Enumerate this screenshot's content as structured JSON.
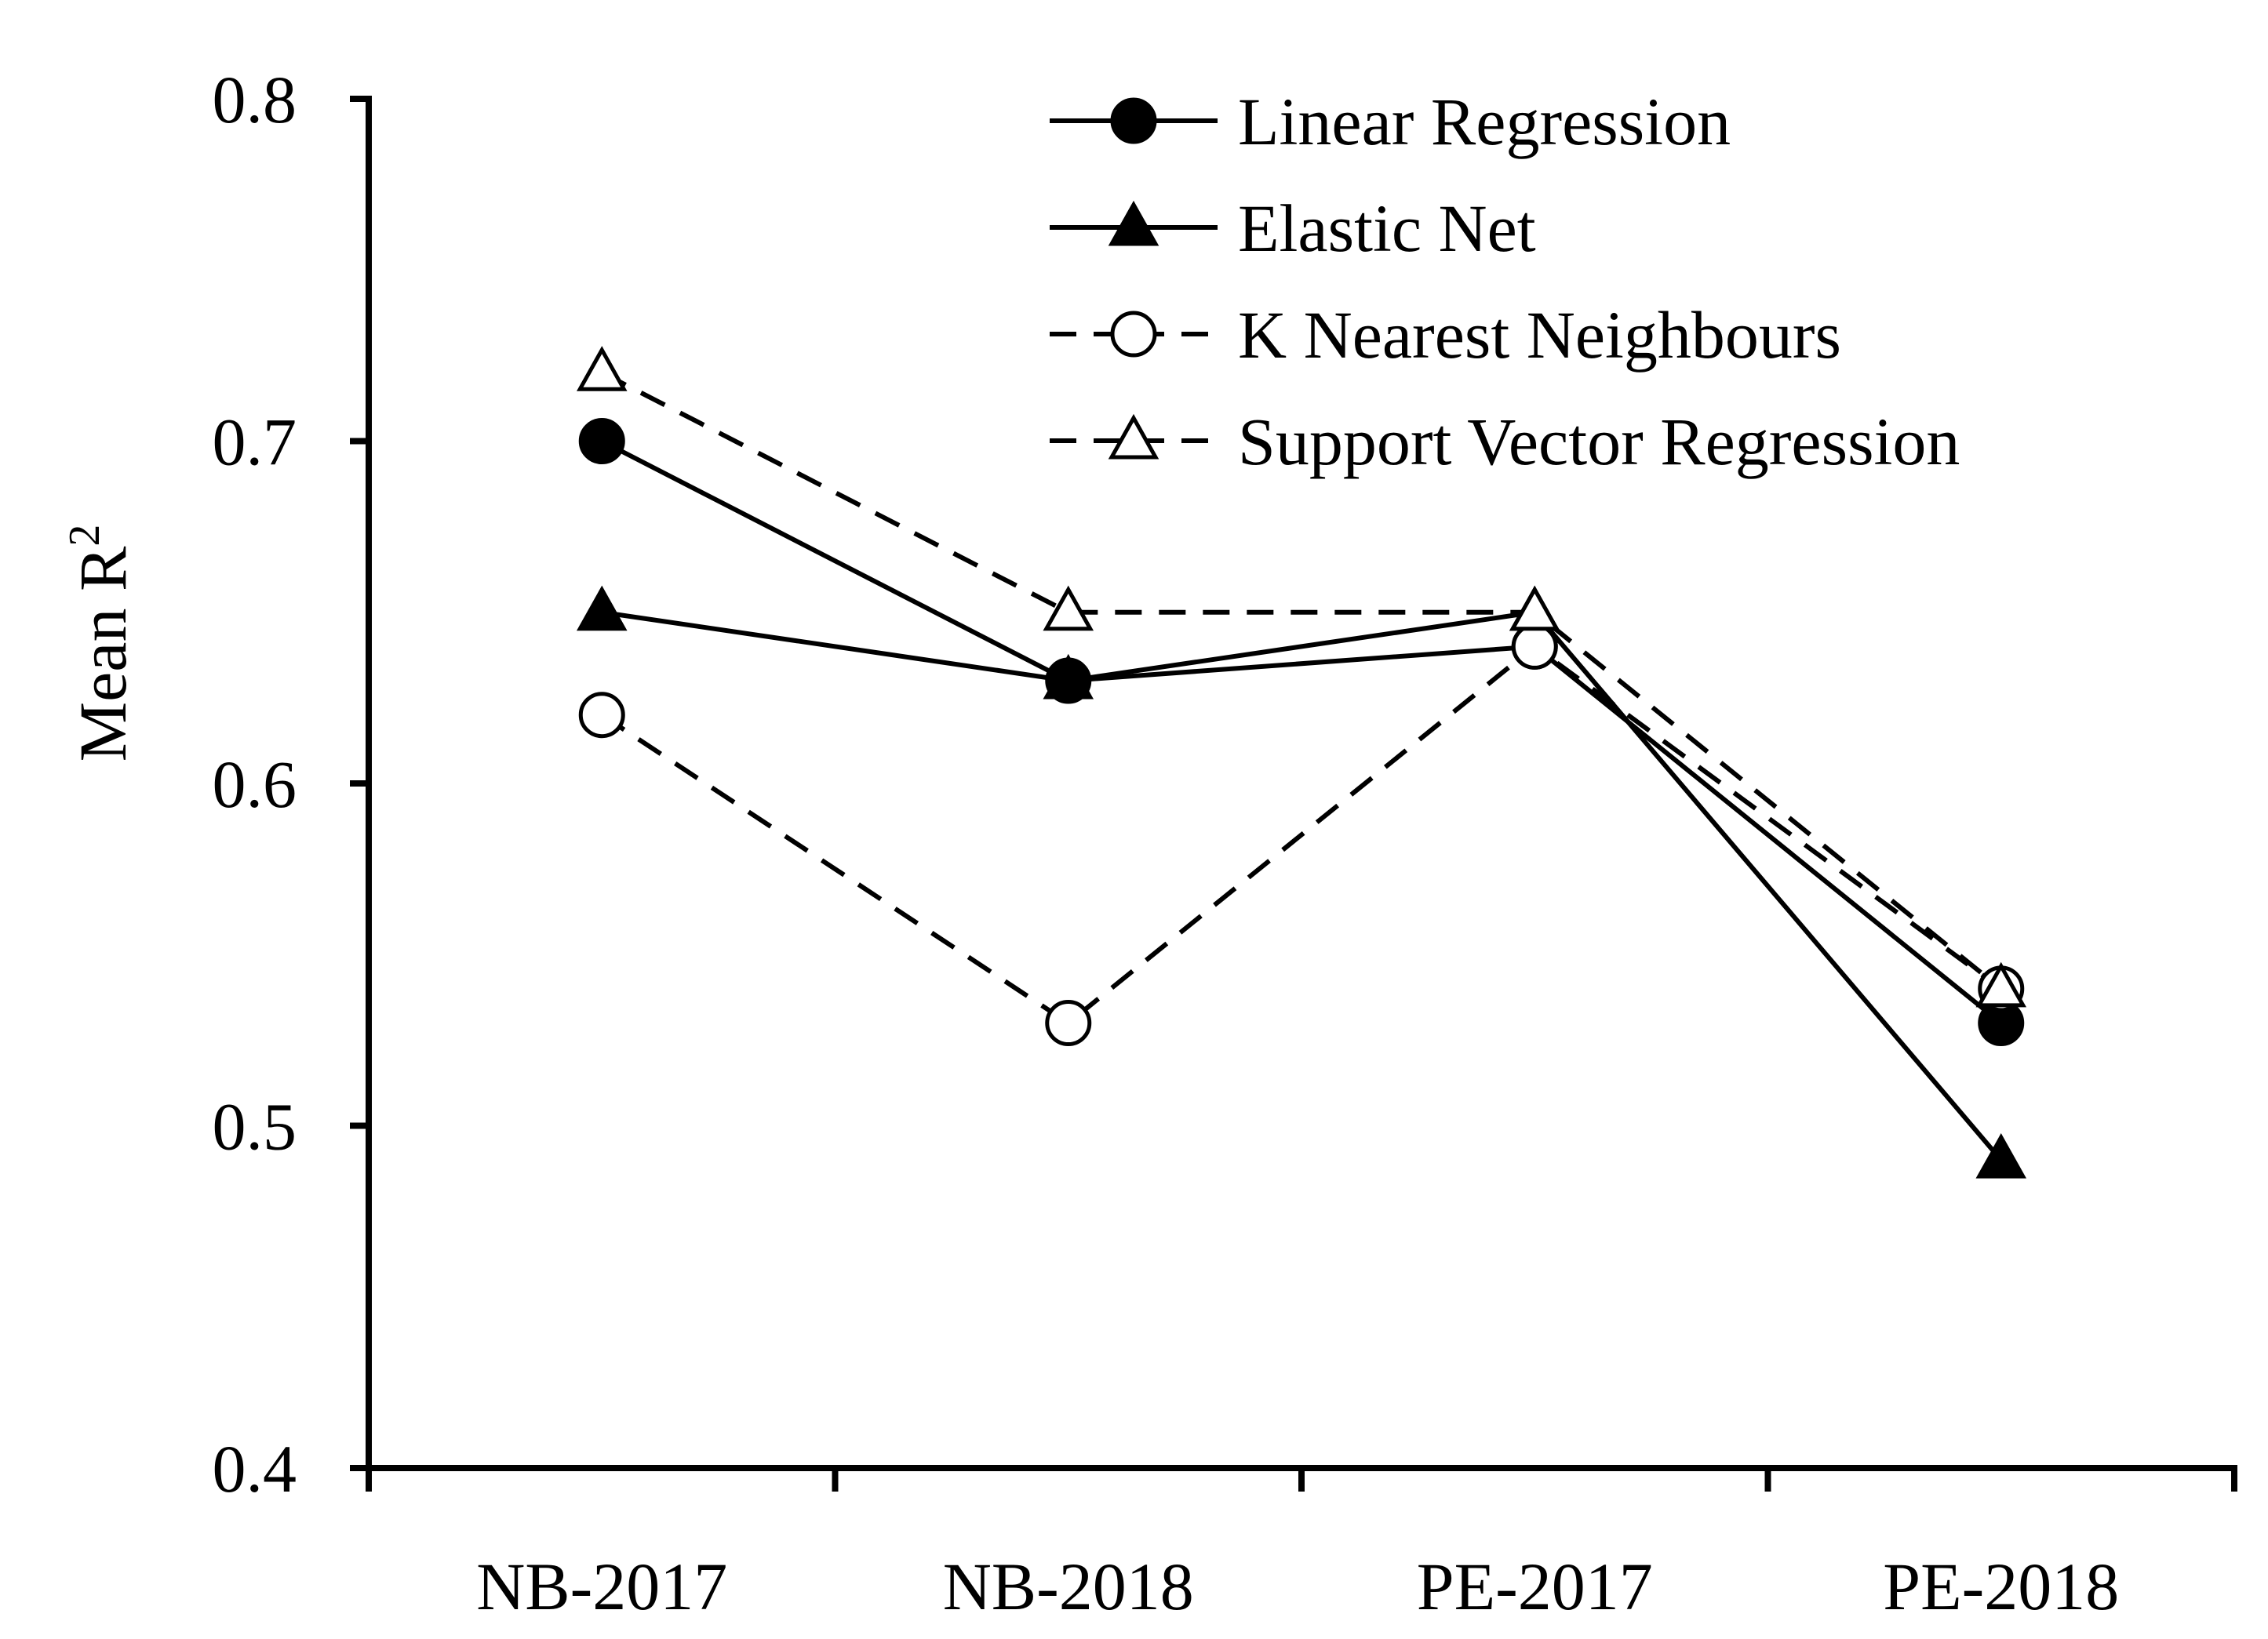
{
  "chart_data": {
    "type": "line",
    "title": "",
    "xlabel": "",
    "ylabel": "Mean R",
    "ylabel_superscript": "2",
    "categories": [
      "NB-2017",
      "NB-2018",
      "PE-2017",
      "PE-2018"
    ],
    "ylim": [
      0.4,
      0.8
    ],
    "yticks": [
      0.4,
      0.5,
      0.6,
      0.7,
      0.8
    ],
    "ytick_labels": [
      "0.4",
      "0.5",
      "0.6",
      "0.7",
      "0.8"
    ],
    "grid": false,
    "legend_position": "top-right",
    "series": [
      {
        "name": "Linear Regression",
        "values": [
          0.7,
          0.63,
          0.64,
          0.53
        ],
        "marker": "circle",
        "filled": true,
        "line": "solid"
      },
      {
        "name": "Elastic Net",
        "values": [
          0.65,
          0.63,
          0.65,
          0.49
        ],
        "marker": "triangle",
        "filled": true,
        "line": "solid"
      },
      {
        "name": "K Nearest Neighbours",
        "values": [
          0.62,
          0.53,
          0.64,
          0.54
        ],
        "marker": "circle",
        "filled": false,
        "line": "dashed"
      },
      {
        "name": "Support Vector Regression",
        "values": [
          0.72,
          0.65,
          0.65,
          0.54
        ],
        "marker": "triangle",
        "filled": false,
        "line": "dashed"
      }
    ]
  }
}
